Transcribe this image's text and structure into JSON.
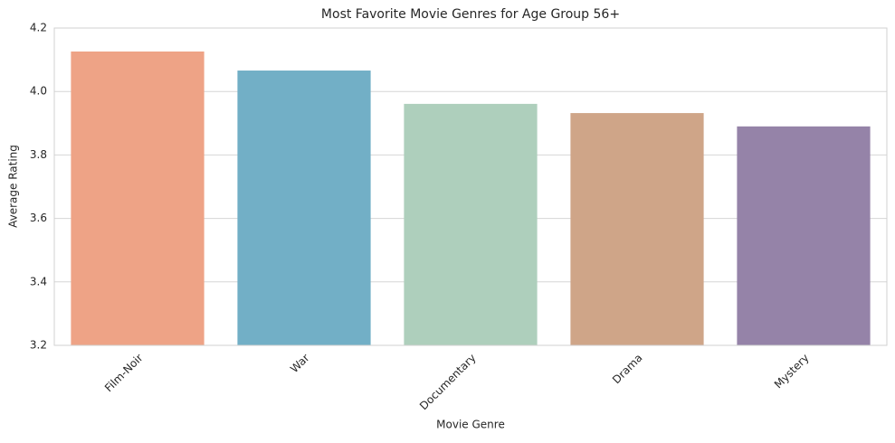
{
  "chart_data": {
    "type": "bar",
    "title": "Most Favorite Movie Genres for Age Group 56+",
    "x_label": "Movie Genre",
    "y_label": "Average Rating",
    "categories": [
      "Film-Noir",
      "War",
      "Documentary",
      "Drama",
      "Mystery"
    ],
    "values": [
      4.126,
      4.066,
      3.961,
      3.932,
      3.89
    ],
    "colors": [
      "#eea386",
      "#72afc6",
      "#aecfbc",
      "#cfa588",
      "#9583a8"
    ],
    "ylim": [
      3.2,
      4.2
    ],
    "yticks": [
      3.2,
      3.4,
      3.6,
      3.8,
      {
        "value": 4,
        "label": "4.0"
      },
      4.2
    ],
    "grid": true
  }
}
